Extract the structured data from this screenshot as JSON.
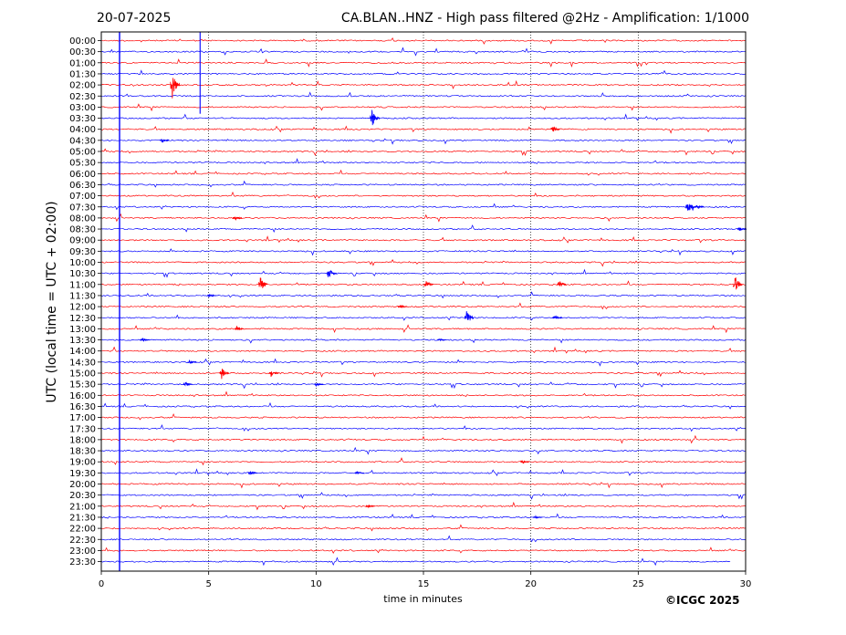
{
  "header": {
    "date": "20-07-2025",
    "title": "CA.BLAN..HNZ - High pass filtered @2Hz - Amplification: 1/1000"
  },
  "credit": "©ICGC 2025",
  "colors": {
    "even_row": "#ff0000",
    "odd_row": "#0000ff",
    "axes": "#000000",
    "grid": "#000000"
  },
  "chart_data": {
    "type": "line",
    "xlabel": "time in minutes",
    "ylabel": "UTC (local time = UTC + 02:00)",
    "xlim": [
      0,
      30
    ],
    "x_ticks": [
      0,
      5,
      10,
      15,
      20,
      25,
      30
    ],
    "x_grid": "dotted",
    "row_labels": [
      "00:00",
      "00:30",
      "01:00",
      "01:30",
      "02:00",
      "02:30",
      "03:00",
      "03:30",
      "04:00",
      "04:30",
      "05:00",
      "05:30",
      "06:00",
      "06:30",
      "07:00",
      "07:30",
      "08:00",
      "08:30",
      "09:00",
      "09:30",
      "10:00",
      "10:30",
      "11:00",
      "11:30",
      "12:00",
      "12:30",
      "13:00",
      "13:30",
      "14:00",
      "14:30",
      "15:00",
      "15:30",
      "16:00",
      "16:30",
      "17:00",
      "17:30",
      "18:00",
      "18:30",
      "19:00",
      "19:30",
      "20:00",
      "20:30",
      "21:00",
      "21:30",
      "22:00",
      "22:30",
      "23:00",
      "23:30"
    ],
    "row_colors_alternate": [
      "red",
      "blue"
    ],
    "last_row_end_minute": 29.3,
    "events": [
      {
        "row": 0,
        "minute": 0.85,
        "amplitude": 40
      },
      {
        "row": 0,
        "minute": 4.6,
        "amplitude": 3
      },
      {
        "row": 4,
        "minute": 3.3,
        "amplitude": 0.6
      },
      {
        "row": 7,
        "minute": 12.6,
        "amplitude": 0.4
      },
      {
        "row": 8,
        "minute": 21.0,
        "amplitude": 0.18
      },
      {
        "row": 9,
        "minute": 2.8,
        "amplitude": 0.12
      },
      {
        "row": 15,
        "minute": 27.3,
        "amplitude": 0.3
      },
      {
        "row": 15,
        "minute": 27.7,
        "amplitude": 0.15
      },
      {
        "row": 16,
        "minute": 6.2,
        "amplitude": 0.12
      },
      {
        "row": 17,
        "minute": 29.7,
        "amplitude": 0.12
      },
      {
        "row": 21,
        "minute": 10.6,
        "amplitude": 0.22
      },
      {
        "row": 22,
        "minute": 21.3,
        "amplitude": 0.2
      },
      {
        "row": 22,
        "minute": 7.4,
        "amplitude": 0.4
      },
      {
        "row": 22,
        "minute": 15.1,
        "amplitude": 0.2
      },
      {
        "row": 22,
        "minute": 29.5,
        "amplitude": 0.4
      },
      {
        "row": 23,
        "minute": 5.0,
        "amplitude": 0.1
      },
      {
        "row": 24,
        "minute": 13.9,
        "amplitude": 0.08
      },
      {
        "row": 25,
        "minute": 21.1,
        "amplitude": 0.12
      },
      {
        "row": 25,
        "minute": 17.0,
        "amplitude": 0.4
      },
      {
        "row": 26,
        "minute": 6.3,
        "amplitude": 0.12
      },
      {
        "row": 27,
        "minute": 1.9,
        "amplitude": 0.12
      },
      {
        "row": 27,
        "minute": 15.7,
        "amplitude": 0.08
      },
      {
        "row": 29,
        "minute": 4.1,
        "amplitude": 0.1
      },
      {
        "row": 30,
        "minute": 7.9,
        "amplitude": 0.15
      },
      {
        "row": 30,
        "minute": 5.6,
        "amplitude": 0.25
      },
      {
        "row": 31,
        "minute": 3.9,
        "amplitude": 0.12
      },
      {
        "row": 31,
        "minute": 10.0,
        "amplitude": 0.08
      },
      {
        "row": 38,
        "minute": 19.6,
        "amplitude": 0.1
      },
      {
        "row": 39,
        "minute": 6.9,
        "amplitude": 0.1
      },
      {
        "row": 39,
        "minute": 11.9,
        "amplitude": 0.08
      },
      {
        "row": 42,
        "minute": 12.4,
        "amplitude": 0.08
      },
      {
        "row": 43,
        "minute": 20.2,
        "amplitude": 0.06
      }
    ]
  }
}
